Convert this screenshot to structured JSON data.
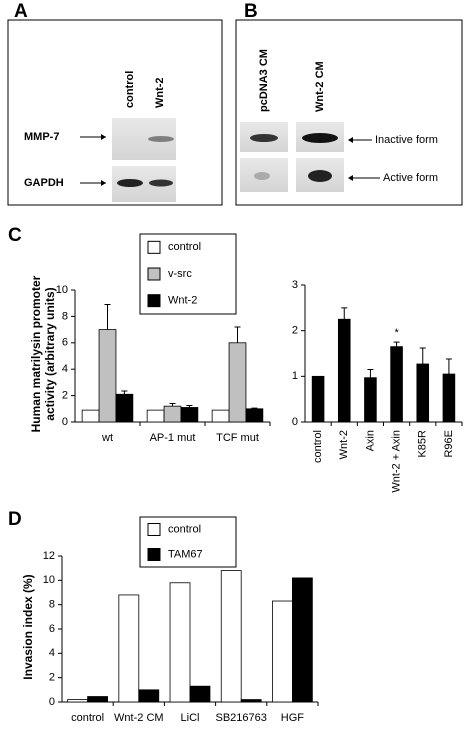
{
  "panels": {
    "a": "A",
    "b": "B",
    "c": "C",
    "d": "D"
  },
  "blot_a": {
    "columns": [
      "control",
      "Wnt-2"
    ],
    "rows": [
      "MMP-7",
      "GAPDH"
    ]
  },
  "blot_b": {
    "columns": [
      "pcDNA3 CM",
      "Wnt-2 CM"
    ],
    "rows": [
      "Inactive form",
      "Active form"
    ]
  },
  "chart_data": [
    {
      "type": "bar",
      "ylabel": "Human matrilysin promoter activity (arbitrary units)",
      "categories": [
        "wt",
        "AP-1 mut",
        "TCF mut"
      ],
      "series": [
        {
          "name": "control",
          "color": "#ffffff",
          "values": [
            0.9,
            0.9,
            0.9
          ]
        },
        {
          "name": "v-src",
          "color": "#c0c0c0",
          "values": [
            7.0,
            1.2,
            6.0
          ],
          "errors": [
            1.9,
            0.2,
            1.2
          ]
        },
        {
          "name": "Wnt-2",
          "color": "#000000",
          "values": [
            2.1,
            1.1,
            1.0
          ],
          "errors": [
            0.25,
            0.15,
            0.05
          ]
        }
      ],
      "ylim": [
        0,
        10
      ],
      "yticks": [
        0,
        2,
        4,
        6,
        8,
        10
      ],
      "legend": true
    },
    {
      "type": "bar",
      "categories": [
        "control",
        "Wnt-2",
        "Axin",
        "Wnt-2 + Axin",
        "K85R",
        "R96E"
      ],
      "values": [
        1.0,
        2.25,
        0.97,
        1.65,
        1.27,
        1.05
      ],
      "errors": [
        null,
        0.25,
        0.18,
        0.1,
        0.35,
        0.33
      ],
      "color": "#000000",
      "annotation": "*",
      "ylim": [
        0,
        3
      ],
      "yticks": [
        0,
        1,
        2,
        3
      ]
    },
    {
      "type": "bar",
      "ylabel": "Invasion index (%)",
      "categories": [
        "control",
        "Wnt-2 CM",
        "LiCl",
        "SB216763",
        "HGF"
      ],
      "series": [
        {
          "name": "control",
          "color": "#ffffff",
          "values": [
            0.2,
            8.8,
            9.8,
            10.8,
            8.3
          ]
        },
        {
          "name": "TAM67",
          "color": "#000000",
          "values": [
            0.45,
            1.0,
            1.3,
            0.2,
            10.2
          ]
        }
      ],
      "ylim": [
        0,
        12
      ],
      "yticks": [
        0,
        2,
        4,
        6,
        8,
        10,
        12
      ],
      "legend": true
    }
  ]
}
